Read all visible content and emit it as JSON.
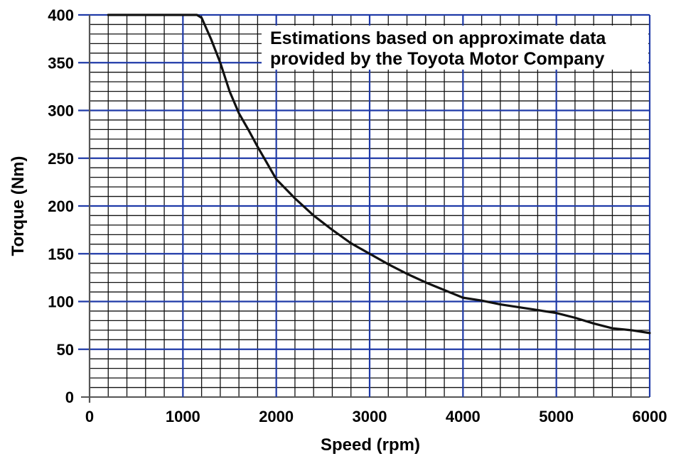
{
  "chart_data": {
    "type": "line",
    "title": "",
    "xlabel": "Speed (rpm)",
    "ylabel": "Torque (Nm)",
    "xlim": [
      0,
      6000
    ],
    "ylim": [
      0,
      400
    ],
    "x_ticks": [
      "0",
      "1000",
      "2000",
      "3000",
      "4000",
      "5000",
      "6000"
    ],
    "y_ticks": [
      "0",
      "50",
      "100",
      "150",
      "200",
      "250",
      "300",
      "350",
      "400"
    ],
    "grid": true,
    "annotation": {
      "line1": "Estimations based on approximate data",
      "line2": "provided by the Toyota Motor Company"
    },
    "series": [
      {
        "color": "#111111",
        "points": [
          [
            200,
            400
          ],
          [
            1150,
            400
          ],
          [
            1200,
            397
          ],
          [
            1300,
            375
          ],
          [
            1400,
            350
          ],
          [
            1500,
            320
          ],
          [
            1600,
            297
          ],
          [
            1700,
            280
          ],
          [
            1800,
            262
          ],
          [
            1900,
            245
          ],
          [
            2000,
            228
          ],
          [
            2100,
            218
          ],
          [
            2200,
            208
          ],
          [
            2400,
            190
          ],
          [
            2600,
            175
          ],
          [
            2800,
            161
          ],
          [
            3000,
            150
          ],
          [
            3200,
            139
          ],
          [
            3400,
            129
          ],
          [
            3600,
            120
          ],
          [
            3800,
            112
          ],
          [
            4000,
            104
          ],
          [
            4200,
            101
          ],
          [
            4400,
            97
          ],
          [
            4600,
            94
          ],
          [
            4800,
            91
          ],
          [
            5000,
            88
          ],
          [
            5200,
            83
          ],
          [
            5400,
            77
          ],
          [
            5600,
            72
          ],
          [
            5800,
            70
          ],
          [
            6000,
            67
          ]
        ]
      }
    ],
    "colors": {
      "major_grid": "#1f3aa8",
      "minor_grid": "#111111",
      "curve": "#111111"
    }
  }
}
